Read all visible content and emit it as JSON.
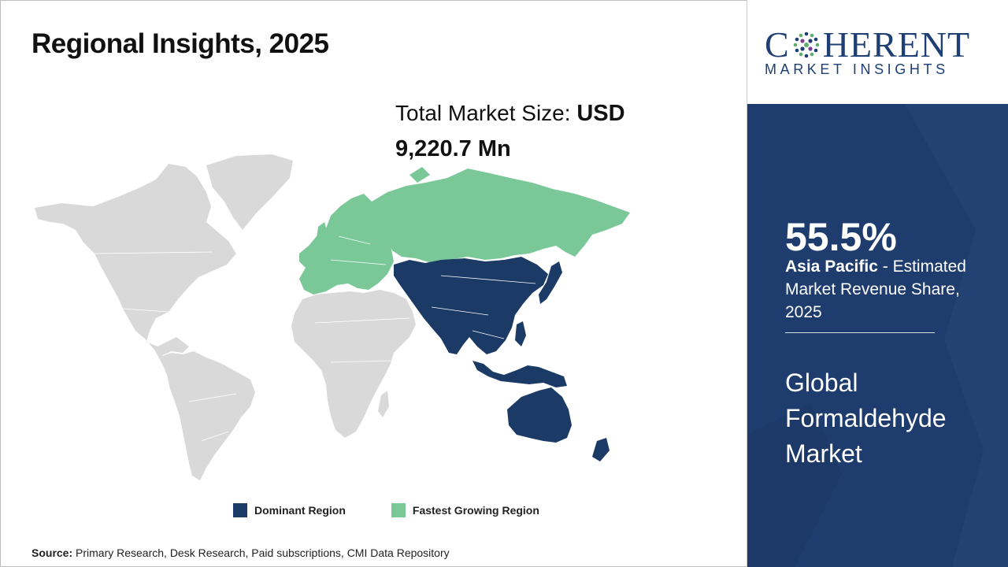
{
  "header": {
    "title": "Regional Insights, 2025"
  },
  "market_size": {
    "label": "Total Market Size: ",
    "currency": "USD",
    "value": "9,220.7 Mn"
  },
  "map": {
    "regions": [
      {
        "name": "North America",
        "category": "other"
      },
      {
        "name": "Latin America",
        "category": "other"
      },
      {
        "name": "Europe",
        "category": "fastest"
      },
      {
        "name": "Russia",
        "category": "fastest"
      },
      {
        "name": "Middle East & Africa",
        "category": "other"
      },
      {
        "name": "Asia Pacific",
        "category": "dominant"
      }
    ]
  },
  "legend": {
    "items": [
      {
        "label": "Dominant Region",
        "color": "#1b3a66"
      },
      {
        "label": "Fastest Growing Region",
        "color": "#7ac797"
      }
    ]
  },
  "colors": {
    "dominant": "#1b3a66",
    "fastest": "#7ac797",
    "other": "#d9d9d9",
    "panel": "#1e3d6e",
    "brand": "#1d3f73"
  },
  "source": {
    "label": "Source:",
    "text": " Primary Research, Desk Research, Paid subscriptions, CMI Data Repository"
  },
  "brand": {
    "name_pre": "C",
    "name_post": "HERENT",
    "tagline": "MARKET INSIGHTS"
  },
  "highlight": {
    "percent": "55.5%",
    "region": "Asia Pacific",
    "description": " - Estimated Market Revenue Share, 2025",
    "market_line1": "Global",
    "market_line2": "Formaldehyde",
    "market_line3": "Market"
  }
}
